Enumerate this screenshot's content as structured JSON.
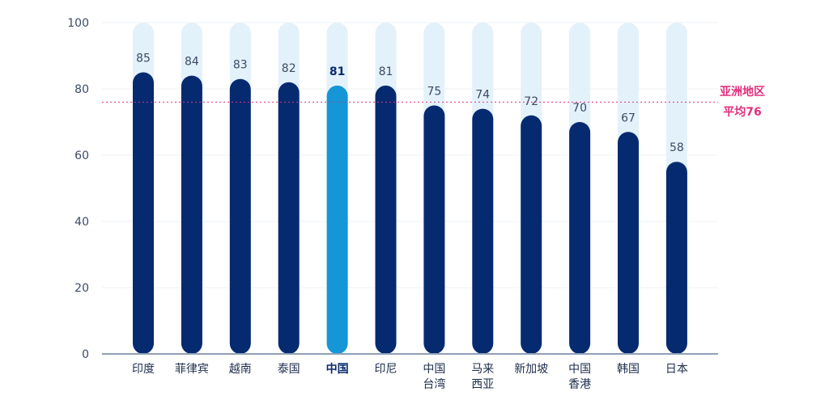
{
  "chart_data": {
    "type": "bar",
    "ylim": [
      0,
      100
    ],
    "yticks": [
      0,
      20,
      40,
      60,
      80,
      100
    ],
    "categories": [
      [
        "印度"
      ],
      [
        "菲律宾"
      ],
      [
        "越南"
      ],
      [
        "泰国"
      ],
      [
        "中国"
      ],
      [
        "印尼"
      ],
      [
        "中国",
        "台湾"
      ],
      [
        "马来",
        "西亚"
      ],
      [
        "新加坡"
      ],
      [
        "中国",
        "香港"
      ],
      [
        "韩国"
      ],
      [
        "日本"
      ]
    ],
    "values": [
      85,
      84,
      83,
      82,
      81,
      81,
      75,
      74,
      72,
      70,
      67,
      58
    ],
    "highlight_index": 4,
    "reference_line": {
      "value": 76,
      "label": [
        "亚洲地区",
        "平均76"
      ]
    },
    "grid": true,
    "colors": {
      "bar": "#062a70",
      "bar_highlight": "#1596d6",
      "track": "#e3f1fa",
      "reference": "#e0307e",
      "axis": "#8ea0b8",
      "grid": "#eef1f5"
    }
  }
}
